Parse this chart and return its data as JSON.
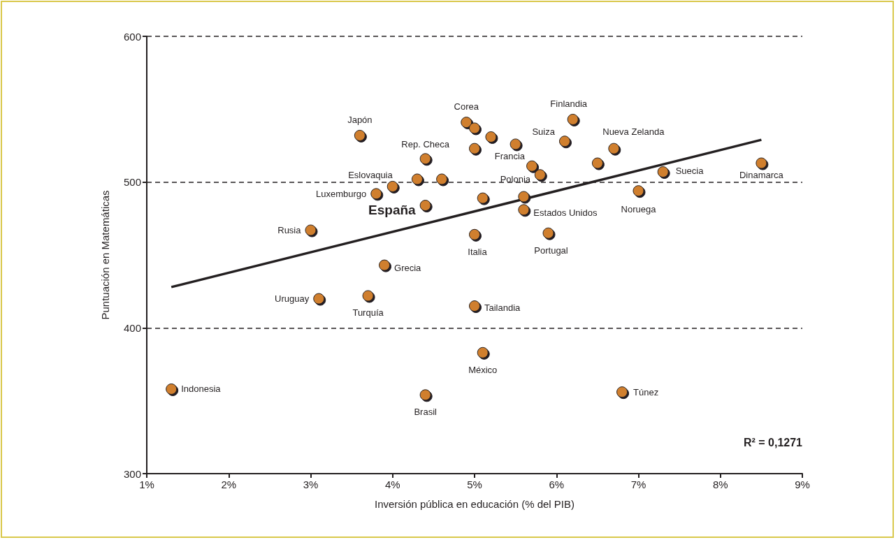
{
  "chart_data": {
    "type": "scatter",
    "xlabel": "Inversión pública en educación (% del PIB)",
    "ylabel": "Puntuación en Matemáticas",
    "xlim": [
      1,
      9
    ],
    "xticks": [
      {
        "value": 1,
        "label": "1%"
      },
      {
        "value": 2,
        "label": "2%"
      },
      {
        "value": 3,
        "label": "3%"
      },
      {
        "value": 4,
        "label": "4%"
      },
      {
        "value": 5,
        "label": "5%"
      },
      {
        "value": 6,
        "label": "6%"
      },
      {
        "value": 7,
        "label": "7%"
      },
      {
        "value": 8,
        "label": "8%"
      },
      {
        "value": 9,
        "label": "9%"
      }
    ],
    "ylim": [
      300,
      600
    ],
    "yticks": [
      300,
      400,
      500,
      600
    ],
    "grid": "y",
    "marker": "circle",
    "series": [
      {
        "color": "#d07f2e",
        "x": [
          1.3,
          3.0,
          3.1,
          3.7,
          3.9,
          3.6,
          3.8,
          4.0,
          4.3,
          4.4,
          4.6,
          4.4,
          4.9,
          5.0,
          5.2,
          5.0,
          5.5,
          5.7,
          5.8,
          5.1,
          5.6,
          5.6,
          5.0,
          5.9,
          6.1,
          6.2,
          6.5,
          6.7,
          7.0,
          7.3,
          8.5,
          5.0,
          5.1,
          4.4,
          6.8
        ],
        "values": [
          358,
          467,
          420,
          422,
          443,
          532,
          492,
          497,
          502,
          516,
          502,
          484,
          541,
          537,
          531,
          523,
          526,
          511,
          505,
          489,
          490,
          481,
          464,
          465,
          528,
          543,
          513,
          523,
          494,
          507,
          513,
          415,
          383,
          354,
          356
        ]
      },
      {
        "type": "line",
        "marker": "none",
        "color": "#231f20",
        "x": [
          1.3,
          8.5
        ],
        "values": [
          428,
          529
        ]
      }
    ],
    "annotations": [
      {
        "text": "Indonesia",
        "x": 1.3,
        "y": 358
      },
      {
        "text": "Rusia",
        "x": 3.0,
        "y": 467
      },
      {
        "text": "Uruguay",
        "x": 3.1,
        "y": 420
      },
      {
        "text": "Turquía",
        "x": 3.7,
        "y": 422
      },
      {
        "text": "Grecia",
        "x": 3.9,
        "y": 443
      },
      {
        "text": "Japón",
        "x": 3.6,
        "y": 532
      },
      {
        "text": "Luxemburgo",
        "x": 3.8,
        "y": 492
      },
      {
        "text": "Eslovaquia",
        "x": 4.0,
        "y": 497
      },
      {
        "text": "Rep. Checa",
        "x": 4.4,
        "y": 516
      },
      {
        "text": "España",
        "x": 4.4,
        "y": 484
      },
      {
        "text": "Corea",
        "x": 4.9,
        "y": 541
      },
      {
        "text": "Francia",
        "x": 5.7,
        "y": 511
      },
      {
        "text": "Polonia",
        "x": 5.6,
        "y": 490
      },
      {
        "text": "Estados Unidos",
        "x": 5.6,
        "y": 481
      },
      {
        "text": "Italia",
        "x": 5.0,
        "y": 464
      },
      {
        "text": "Portugal",
        "x": 5.9,
        "y": 465
      },
      {
        "text": "Suiza",
        "x": 6.1,
        "y": 528
      },
      {
        "text": "Finlandia",
        "x": 6.2,
        "y": 543
      },
      {
        "text": "Nueva Zelanda",
        "x": 6.7,
        "y": 523
      },
      {
        "text": "Noruega",
        "x": 7.0,
        "y": 494
      },
      {
        "text": "Suecia",
        "x": 7.3,
        "y": 507
      },
      {
        "text": "Dinamarca",
        "x": 8.5,
        "y": 513
      },
      {
        "text": "Tailandia",
        "x": 5.0,
        "y": 415
      },
      {
        "text": "México",
        "x": 5.1,
        "y": 383
      },
      {
        "text": "Brasil",
        "x": 4.4,
        "y": 354
      },
      {
        "text": "Túnez",
        "x": 6.8,
        "y": 356
      },
      "R² = 0,1271"
    ]
  }
}
